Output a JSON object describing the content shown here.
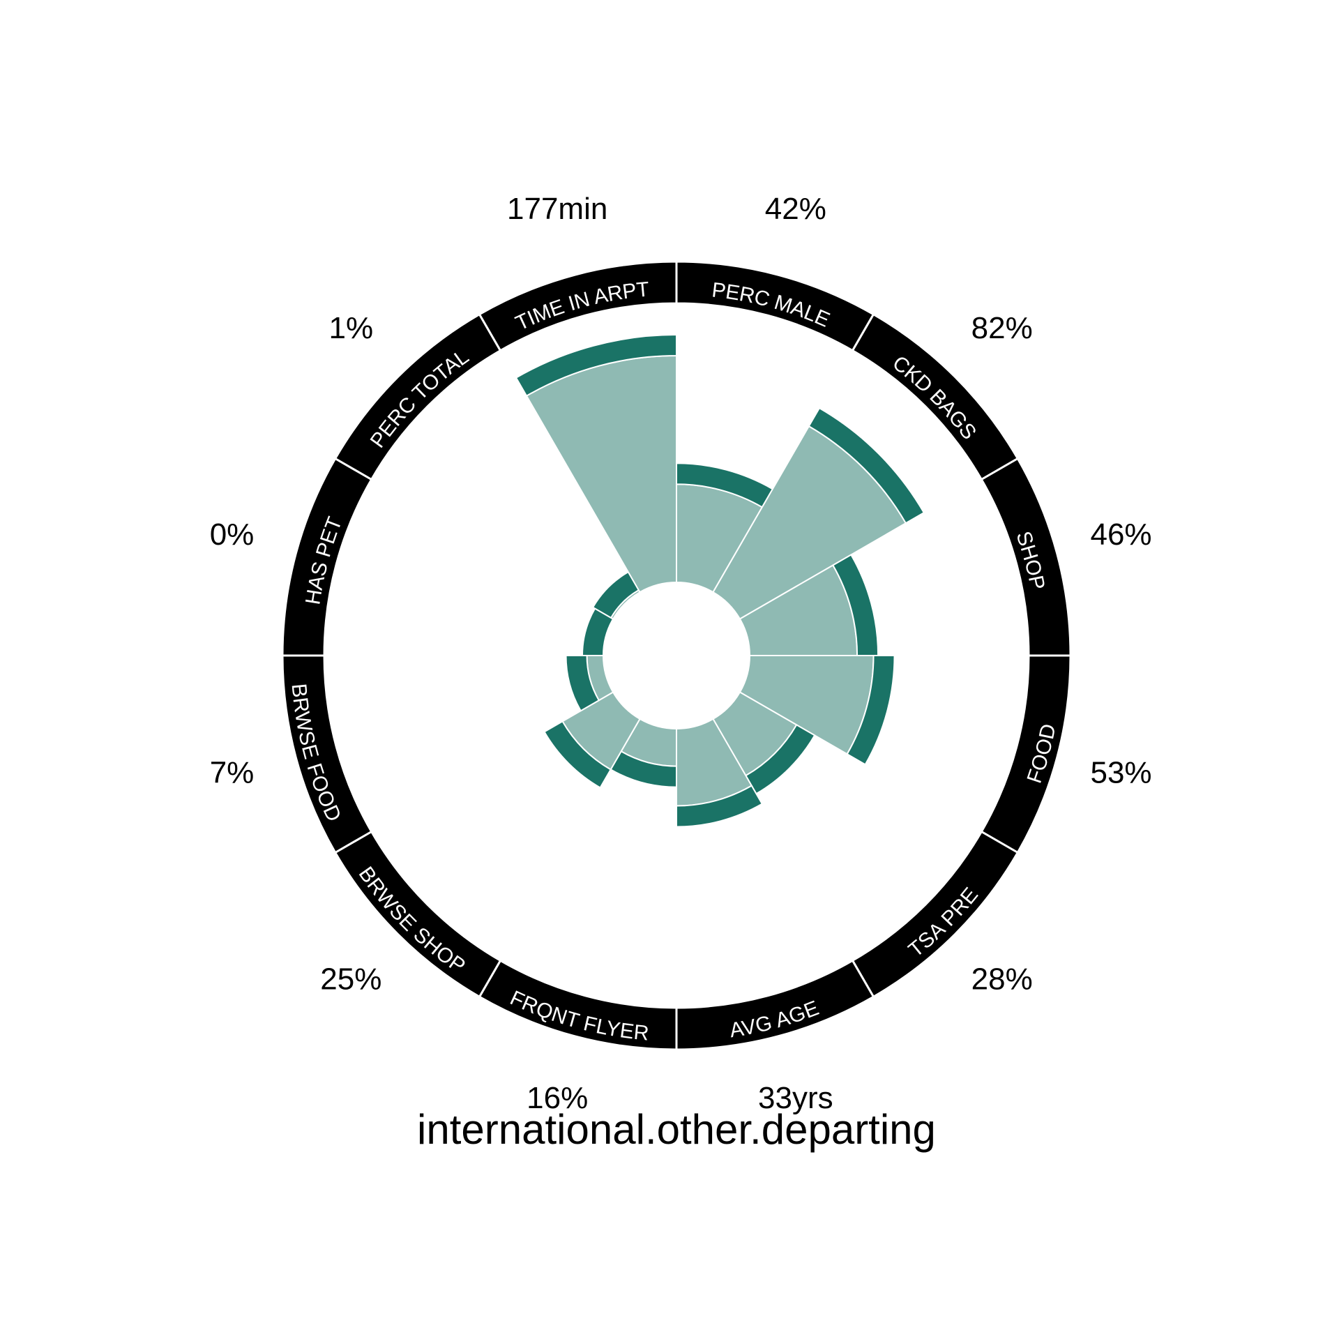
{
  "chart_data": {
    "type": "polar-bar",
    "title": "international.other.departing",
    "colors": {
      "fill": "#8fbab3",
      "outer_band": "#1a7366",
      "ring": "#000000",
      "ring_text": "#ffffff",
      "divider": "#ffffff"
    },
    "categories": [
      {
        "key": "perc_male",
        "label": "PERC MALE",
        "value_label": "42%",
        "value": 42
      },
      {
        "key": "ckd_bags",
        "label": "CKD BAGS",
        "value_label": "82%",
        "value": 82
      },
      {
        "key": "shop",
        "label": "SHOP",
        "value_label": "46%",
        "value": 46
      },
      {
        "key": "food",
        "label": "FOOD",
        "value_label": "53%",
        "value": 53
      },
      {
        "key": "tsa_pre",
        "label": "TSA PRE",
        "value_label": "28%",
        "value": 28
      },
      {
        "key": "avg_age",
        "label": "AVG AGE",
        "value_label": "33yrs",
        "value": 33
      },
      {
        "key": "frqnt_flyer",
        "label": "FRQNT FLYER",
        "value_label": "16%",
        "value": 16
      },
      {
        "key": "brwse_shop",
        "label": "BRWSE SHOP",
        "value_label": "25%",
        "value": 25
      },
      {
        "key": "brwse_food",
        "label": "BRWSE FOOD",
        "value_label": "7%",
        "value": 7
      },
      {
        "key": "has_pet",
        "label": "HAS PET",
        "value_label": "0%",
        "value": 0
      },
      {
        "key": "perc_total",
        "label": "PERC TOTAL",
        "value_label": "1%",
        "value": 1
      },
      {
        "key": "time_in_arpt",
        "label": "TIME IN ARPT",
        "value_label": "177min",
        "value": 177
      }
    ],
    "scaled_values": [
      0.42,
      0.82,
      0.46,
      0.53,
      0.28,
      0.33,
      0.16,
      0.25,
      0.07,
      0.0,
      0.01,
      0.97
    ],
    "band_values": [
      0.07,
      0.07,
      0.07,
      0.07,
      0.07,
      0.07,
      0.07,
      0.07,
      0.07,
      0.07,
      0.07,
      0.07
    ]
  }
}
